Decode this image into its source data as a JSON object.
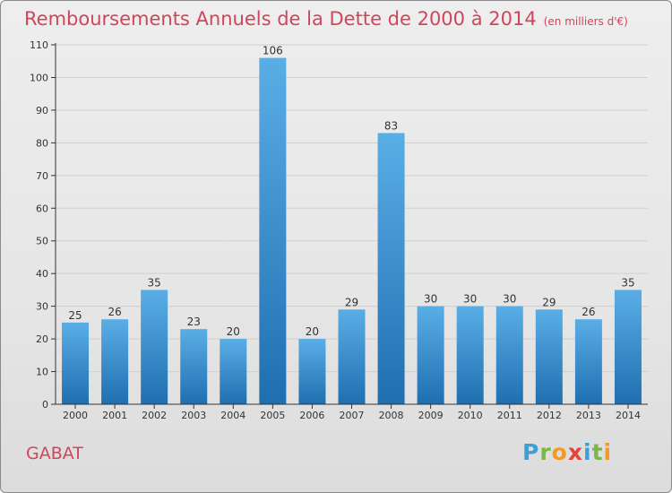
{
  "header": {
    "title": "Remboursements Annuels de la Dette de 2000 à 2014",
    "unit": "(en milliers d'€)"
  },
  "footer": {
    "commune": "GABAT",
    "brand_letters": [
      "P",
      "r",
      "o",
      "x",
      "i",
      "t",
      "i"
    ]
  },
  "colors": {
    "title": "#d1455a",
    "bar_light": "#5aaee6",
    "bar_dark": "#1f6fb0",
    "grid": "#cfcfcf",
    "axis": "#333333"
  },
  "chart_data": {
    "type": "bar",
    "title": "Remboursements Annuels de la Dette de 2000 à 2014",
    "categories": [
      "2000",
      "2001",
      "2002",
      "2003",
      "2004",
      "2005",
      "2006",
      "2007",
      "2008",
      "2009",
      "2010",
      "2011",
      "2012",
      "2013",
      "2014"
    ],
    "values": [
      25,
      26,
      35,
      23,
      20,
      106,
      20,
      29,
      83,
      30,
      30,
      30,
      29,
      26,
      35
    ],
    "ylim": [
      0,
      110
    ],
    "yticks": [
      0,
      10,
      20,
      30,
      40,
      50,
      60,
      70,
      80,
      90,
      100,
      110
    ],
    "grid": true,
    "data_labels": true
  }
}
